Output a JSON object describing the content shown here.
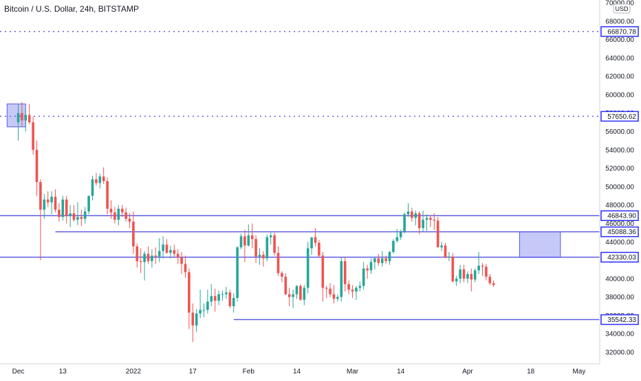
{
  "header": {
    "title": "Bitcoin / U.S. Dollar, 24h, BITSTAMP"
  },
  "colors": {
    "up": "#26a69a",
    "down": "#ef5350",
    "level": "#5c5ce6",
    "dotted": "#6b5ce6",
    "zone_fill": "#b3b7f5",
    "axis_text": "#131722",
    "label_bg": "#2a2aff"
  },
  "chart_data": {
    "type": "candlestick",
    "title": "Bitcoin / U.S. Dollar, 24h, BITSTAMP",
    "currency": "USD",
    "y_ticks": [
      32000,
      34000,
      36000,
      38000,
      40000,
      42000,
      44000,
      46000,
      48000,
      50000,
      52000,
      54000,
      56000,
      58000,
      60000,
      62000,
      64000,
      66000,
      68000,
      70000
    ],
    "ylim": [
      31000,
      70500
    ],
    "x_ticks": [
      {
        "label": "Dec",
        "day": 0
      },
      {
        "label": "13",
        "day": 12
      },
      {
        "label": "2022",
        "day": 31
      },
      {
        "label": "17",
        "day": 47
      },
      {
        "label": "Feb",
        "day": 62
      },
      {
        "label": "14",
        "day": 75
      },
      {
        "label": "Mar",
        "day": 90
      },
      {
        "label": "14",
        "day": 103
      },
      {
        "label": "Apr",
        "day": 121
      },
      {
        "label": "18",
        "day": 138
      },
      {
        "label": "May",
        "day": 151
      }
    ],
    "price_levels": [
      {
        "value": 66870.78,
        "label": "66870.78",
        "style": "dotted"
      },
      {
        "value": 57650.62,
        "label": "57650.62",
        "style": "dotted"
      },
      {
        "value": 46843.9,
        "label": "46843.90",
        "style": "solid"
      },
      {
        "value": 45088.36,
        "label": "45088.36",
        "style": "solid"
      },
      {
        "value": 42330.03,
        "label": "42330.03",
        "style": "solid"
      },
      {
        "value": 35542.33,
        "label": "35542.33",
        "style": "solid"
      }
    ],
    "zones": [
      {
        "day_start": -3,
        "day_end": 2,
        "low": 56500,
        "high": 59000
      },
      {
        "day_start": 135,
        "day_end": 146,
        "low": 42300,
        "high": 45100
      }
    ],
    "candles": [
      [
        57000,
        59000,
        55000,
        58000
      ],
      [
        58000,
        59200,
        56500,
        57200
      ],
      [
        57200,
        58500,
        56000,
        57800
      ],
      [
        57800,
        59000,
        56800,
        57000
      ],
      [
        57000,
        57600,
        53500,
        54000
      ],
      [
        54000,
        55000,
        49000,
        50500
      ],
      [
        50500,
        50800,
        42000,
        47500
      ],
      [
        47500,
        49200,
        46500,
        48600
      ],
      [
        48600,
        49500,
        47800,
        48300
      ],
      [
        48300,
        49500,
        47000,
        48900
      ],
      [
        48900,
        49700,
        47200,
        47500
      ],
      [
        47500,
        48200,
        46200,
        46700
      ],
      [
        46700,
        49000,
        46300,
        48600
      ],
      [
        48600,
        49000,
        46000,
        46800
      ],
      [
        46800,
        48000,
        45600,
        47100
      ],
      [
        47100,
        48000,
        46200,
        46400
      ],
      [
        46400,
        48300,
        45800,
        46700
      ],
      [
        46700,
        47500,
        45700,
        46500
      ],
      [
        46500,
        47800,
        46000,
        47300
      ],
      [
        47300,
        49000,
        47000,
        49000
      ],
      [
        49000,
        51200,
        48500,
        50800
      ],
      [
        50800,
        51500,
        50100,
        50400
      ],
      [
        50400,
        51400,
        49800,
        51100
      ],
      [
        51100,
        52100,
        50300,
        50600
      ],
      [
        50600,
        51000,
        47000,
        47600
      ],
      [
        47600,
        48500,
        46500,
        47200
      ],
      [
        47200,
        47800,
        46000,
        46400
      ],
      [
        46400,
        48000,
        45800,
        47600
      ],
      [
        47600,
        48000,
        46700,
        47200
      ],
      [
        47200,
        47700,
        46200,
        46500
      ],
      [
        46500,
        47100,
        45500,
        46200
      ],
      [
        46200,
        47300,
        42700,
        43500
      ],
      [
        43500,
        43800,
        41200,
        41900
      ],
      [
        41900,
        43300,
        40600,
        41800
      ],
      [
        41800,
        43000,
        39800,
        42700
      ],
      [
        42700,
        43500,
        41600,
        41900
      ],
      [
        41900,
        43200,
        41200,
        42500
      ],
      [
        42500,
        43400,
        41600,
        42400
      ],
      [
        42400,
        44400,
        41800,
        43000
      ],
      [
        43000,
        44600,
        42200,
        43700
      ],
      [
        43700,
        44300,
        42700,
        42800
      ],
      [
        42800,
        43600,
        42200,
        43100
      ],
      [
        43100,
        43700,
        42300,
        42700
      ],
      [
        42700,
        43200,
        41600,
        42300
      ],
      [
        42300,
        42900,
        40500,
        41600
      ],
      [
        41600,
        42500,
        40100,
        40700
      ],
      [
        40700,
        41100,
        34500,
        36300
      ],
      [
        36300,
        37300,
        33100,
        34900
      ],
      [
        34900,
        36700,
        34200,
        36200
      ],
      [
        36200,
        38800,
        35700,
        36600
      ],
      [
        36600,
        37300,
        35800,
        36600
      ],
      [
        36600,
        38800,
        36200,
        37500
      ],
      [
        37500,
        39400,
        37000,
        38100
      ],
      [
        38100,
        38900,
        36400,
        37600
      ],
      [
        37600,
        38700,
        37100,
        38300
      ],
      [
        38300,
        38700,
        37600,
        38300
      ],
      [
        38300,
        39100,
        37800,
        38500
      ],
      [
        38500,
        38800,
        36800,
        37000
      ],
      [
        37000,
        38400,
        36300,
        37900
      ],
      [
        37900,
        43500,
        37500,
        43400
      ],
      [
        43400,
        44900,
        43200,
        44600
      ],
      [
        44600,
        45300,
        41800,
        43600
      ],
      [
        43600,
        45900,
        43500,
        44700
      ],
      [
        44700,
        46000,
        43300,
        44300
      ],
      [
        44300,
        44700,
        41700,
        42400
      ],
      [
        42400,
        43300,
        41500,
        42600
      ],
      [
        42600,
        43000,
        41300,
        42200
      ],
      [
        42200,
        44800,
        41900,
        44500
      ],
      [
        44500,
        45000,
        43700,
        44700
      ],
      [
        44700,
        45000,
        42500,
        42800
      ],
      [
        42800,
        43500,
        40300,
        40600
      ],
      [
        40600,
        40800,
        39600,
        40200
      ],
      [
        40200,
        40600,
        38200,
        38300
      ],
      [
        38300,
        39000,
        37000,
        38000
      ],
      [
        38000,
        38800,
        36800,
        38300
      ],
      [
        38300,
        39300,
        37800,
        39200
      ],
      [
        39200,
        39400,
        37600,
        37700
      ],
      [
        37700,
        39300,
        37100,
        39000
      ],
      [
        39000,
        44000,
        38400,
        43300
      ],
      [
        43300,
        44300,
        42600,
        44500
      ],
      [
        44500,
        45500,
        43500,
        43900
      ],
      [
        43900,
        44200,
        42300,
        42500
      ],
      [
        42500,
        42900,
        37500,
        39000
      ],
      [
        39000,
        39200,
        37900,
        38900
      ],
      [
        38900,
        39500,
        38000,
        38300
      ],
      [
        38300,
        39300,
        37300,
        37800
      ],
      [
        37800,
        38300,
        37500,
        38000
      ],
      [
        38000,
        42300,
        37500,
        41900
      ],
      [
        41900,
        42400,
        38600,
        39400
      ],
      [
        39400,
        39800,
        38300,
        38800
      ],
      [
        38800,
        39300,
        37900,
        38600
      ],
      [
        38600,
        39200,
        37700,
        39000
      ],
      [
        39000,
        39700,
        38600,
        39200
      ],
      [
        39200,
        41800,
        38800,
        41100
      ],
      [
        41100,
        41500,
        40000,
        40900
      ],
      [
        40900,
        42200,
        40500,
        41800
      ],
      [
        41800,
        42300,
        41000,
        42200
      ],
      [
        42200,
        42700,
        41400,
        41700
      ],
      [
        41700,
        43000,
        41300,
        42200
      ],
      [
        42200,
        42500,
        41600,
        41900
      ],
      [
        41900,
        43000,
        41500,
        42900
      ],
      [
        42900,
        44300,
        42700,
        44100
      ],
      [
        44100,
        45400,
        43900,
        44500
      ],
      [
        44500,
        45300,
        44200,
        45100
      ],
      [
        45100,
        47200,
        44900,
        47000
      ],
      [
        47000,
        48200,
        46700,
        47300
      ],
      [
        47300,
        47700,
        46200,
        46600
      ],
      [
        46600,
        47400,
        45800,
        47100
      ],
      [
        47100,
        47300,
        44800,
        45500
      ],
      [
        45500,
        47400,
        45100,
        46400
      ],
      [
        46400,
        47000,
        45200,
        46600
      ],
      [
        46600,
        46900,
        45600,
        46400
      ],
      [
        46400,
        47100,
        45300,
        46300
      ],
      [
        46300,
        46700,
        43600,
        43400
      ],
      [
        43400,
        44000,
        43000,
        43600
      ],
      [
        43600,
        43900,
        42200,
        42300
      ],
      [
        42300,
        42900,
        41900,
        42400
      ],
      [
        42400,
        42800,
        39600,
        39700
      ],
      [
        39700,
        40300,
        39200,
        40000
      ],
      [
        40000,
        41500,
        39500,
        41000
      ],
      [
        41000,
        41500,
        39600,
        40000
      ],
      [
        40000,
        40800,
        39500,
        40500
      ],
      [
        40500,
        41100,
        38600,
        39900
      ],
      [
        39900,
        41100,
        39600,
        40900
      ],
      [
        40900,
        42900,
        40500,
        41400
      ],
      [
        41400,
        41700,
        40300,
        41300
      ],
      [
        41300,
        41600,
        39800,
        40200
      ],
      [
        40200,
        40500,
        39300,
        39500
      ],
      [
        39500,
        39800,
        39100,
        39300
      ]
    ]
  }
}
